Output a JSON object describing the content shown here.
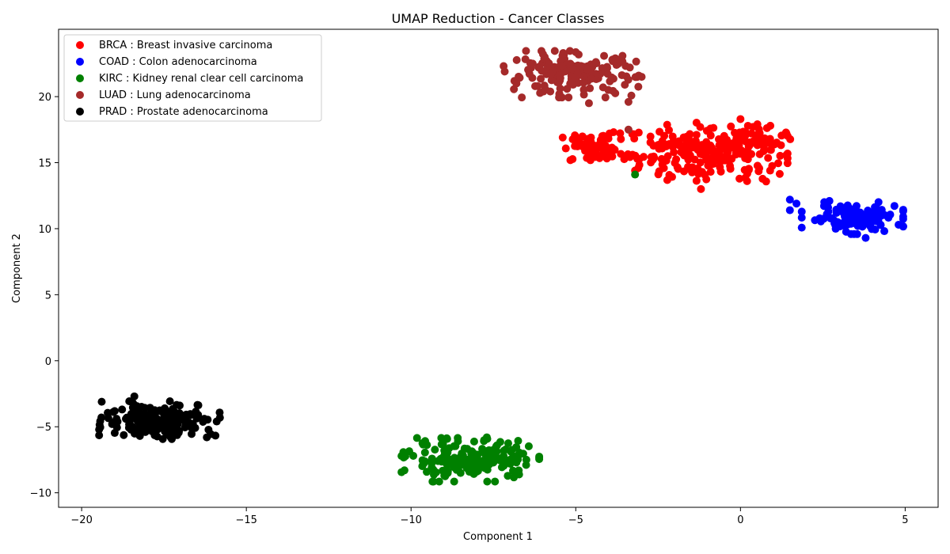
{
  "chart_data": {
    "type": "scatter",
    "title": "UMAP Reduction - Cancer Classes",
    "xlabel": "Component 1",
    "ylabel": "Component 2",
    "xlim": [
      -20.7,
      6.0
    ],
    "ylim": [
      -11.1,
      25.1
    ],
    "xticks": [
      -20,
      -15,
      -10,
      -5,
      0,
      5
    ],
    "yticks": [
      -10,
      -5,
      0,
      5,
      10,
      15,
      20
    ],
    "xtick_labels": [
      "−20",
      "−15",
      "−10",
      "−5",
      "0",
      "5"
    ],
    "ytick_labels": [
      "−10",
      "−5",
      "0",
      "5",
      "10",
      "15",
      "20"
    ],
    "grid": false,
    "legend_position": "top-left",
    "series": [
      {
        "name": "BRCA : Breast invasive carcinoma",
        "color": "#ff0000",
        "clusters": [
          {
            "center": [
              -4.4,
              16.1
            ],
            "spread": [
              0.55,
              0.55
            ],
            "count": 60
          },
          {
            "center": [
              -1.1,
              15.8
            ],
            "spread": [
              1.15,
              1.05
            ],
            "count": 200
          },
          {
            "center": [
              0.3,
              16.6
            ],
            "spread": [
              0.55,
              0.6
            ],
            "count": 50
          }
        ],
        "points": [
          [
            -3.2,
            14.4
          ],
          [
            -3.1,
            14.6
          ],
          [
            1.4,
            15.6
          ],
          [
            -5.0,
            16.4
          ],
          [
            0.0,
            18.3
          ],
          [
            -1.2,
            13.0
          ],
          [
            0.2,
            13.6
          ],
          [
            0.9,
            14.4
          ]
        ]
      },
      {
        "name": "COAD : Colon adenocarcinoma",
        "color": "#0000ff",
        "clusters": [
          {
            "center": [
              3.4,
              10.8
            ],
            "spread": [
              0.7,
              0.55
            ],
            "count": 120
          }
        ],
        "points": [
          [
            1.5,
            12.2
          ],
          [
            1.7,
            11.9
          ],
          [
            1.5,
            11.4
          ],
          [
            2.7,
            12.1
          ],
          [
            4.8,
            10.3
          ],
          [
            3.8,
            9.3
          ]
        ]
      },
      {
        "name": "KIRC : Kidney renal clear cell carcinoma",
        "color": "#008000",
        "clusters": [
          {
            "center": [
              -8.2,
              -7.5
            ],
            "spread": [
              0.95,
              0.75
            ],
            "count": 190
          }
        ],
        "points": [
          [
            -3.2,
            14.1
          ],
          [
            -10.2,
            -8.3
          ],
          [
            -6.5,
            -7.5
          ],
          [
            -7.7,
            -5.8
          ]
        ]
      },
      {
        "name": "LUAD : Lung adenocarcinoma",
        "color": "#a52a2a",
        "clusters": [
          {
            "center": [
              -5.1,
              21.7
            ],
            "spread": [
              0.95,
              0.8
            ],
            "count": 170
          }
        ],
        "points": [
          [
            -3.4,
            17.5
          ],
          [
            -3.4,
            19.6
          ],
          [
            -4.6,
            19.5
          ],
          [
            -3.0,
            21.5
          ],
          [
            -6.8,
            21.0
          ]
        ]
      },
      {
        "name": "PRAD : Prostate adenocarcinoma",
        "color": "#000000",
        "clusters": [
          {
            "center": [
              -17.6,
              -4.5
            ],
            "spread": [
              0.85,
              0.65
            ],
            "count": 190
          }
        ],
        "points": [
          [
            -19.4,
            -4.3
          ],
          [
            -15.9,
            -4.6
          ],
          [
            -16.2,
            -5.8
          ],
          [
            -18.4,
            -2.7
          ]
        ]
      }
    ]
  }
}
